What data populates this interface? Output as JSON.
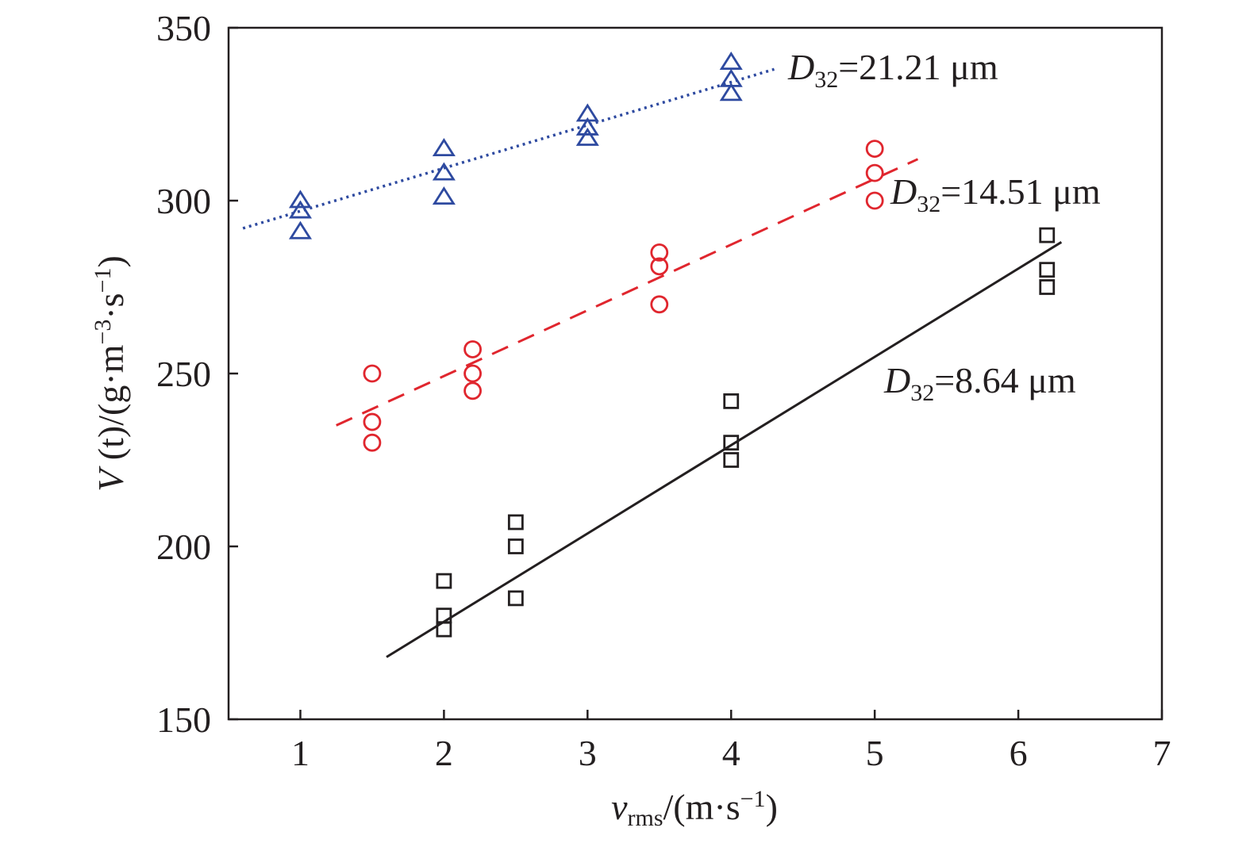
{
  "chart_data": {
    "type": "scatter",
    "xlabel": {
      "main": "v",
      "sub": "rms",
      "rest": "/(m·s",
      "exp": "−1",
      "close": ")"
    },
    "ylabel": {
      "main": "V",
      "paren": " (t)",
      "rest": "/(g·m",
      "exp1": "−3",
      "mid": "·s",
      "exp2": "−1",
      "close": ")"
    },
    "xlim": [
      0.5,
      7
    ],
    "ylim": [
      150,
      350
    ],
    "xticks": [
      "1",
      "2",
      "3",
      "4",
      "5",
      "6",
      "7"
    ],
    "yticks": [
      "150",
      "200",
      "250",
      "300",
      "350"
    ],
    "grid": false,
    "series": [
      {
        "label": {
          "main": "D",
          "sub": "32",
          "value": "=21.21 μm"
        },
        "marker": "triangle",
        "color": "#2e4aa0",
        "fit_style": "dotted",
        "points": [
          [
            1,
            300
          ],
          [
            1,
            297
          ],
          [
            1,
            291
          ],
          [
            2,
            315
          ],
          [
            2,
            308
          ],
          [
            2,
            301
          ],
          [
            3,
            325
          ],
          [
            3,
            321
          ],
          [
            3,
            318
          ],
          [
            4,
            340
          ],
          [
            4,
            335
          ],
          [
            4,
            331
          ]
        ],
        "fit": [
          [
            0.6,
            292
          ],
          [
            4.3,
            338
          ]
        ]
      },
      {
        "label": {
          "main": "D",
          "sub": "32",
          "value": "=14.51 μm"
        },
        "marker": "circle",
        "color": "#e0262e",
        "fit_style": "dashed",
        "points": [
          [
            1.5,
            250
          ],
          [
            1.5,
            236
          ],
          [
            1.5,
            230
          ],
          [
            2.2,
            257
          ],
          [
            2.2,
            250
          ],
          [
            2.2,
            245
          ],
          [
            3.5,
            285
          ],
          [
            3.5,
            281
          ],
          [
            3.5,
            270
          ],
          [
            5,
            315
          ],
          [
            5,
            308
          ],
          [
            5,
            300
          ]
        ],
        "fit": [
          [
            1.25,
            235
          ],
          [
            5.3,
            312
          ]
        ]
      },
      {
        "label": {
          "main": "D",
          "sub": "32",
          "value": "=8.64 μm"
        },
        "marker": "square",
        "color": "#231f20",
        "fit_style": "solid",
        "points": [
          [
            2,
            190
          ],
          [
            2,
            180
          ],
          [
            2,
            176
          ],
          [
            2.5,
            207
          ],
          [
            2.5,
            200
          ],
          [
            2.5,
            185
          ],
          [
            4,
            242
          ],
          [
            4,
            230
          ],
          [
            4,
            225
          ],
          [
            6.2,
            290
          ],
          [
            6.2,
            280
          ],
          [
            6.2,
            275
          ]
        ],
        "fit": [
          [
            1.6,
            168
          ],
          [
            6.3,
            288
          ]
        ]
      }
    ]
  }
}
